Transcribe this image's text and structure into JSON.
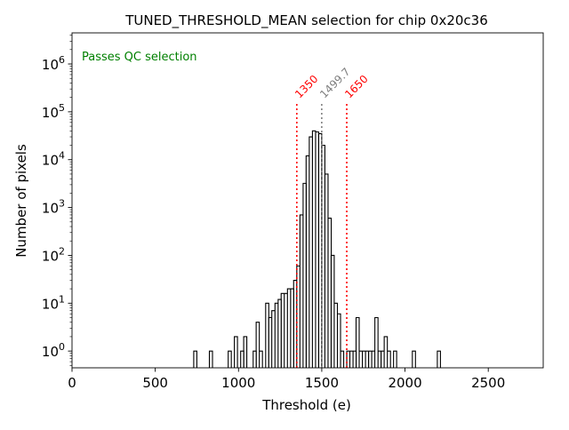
{
  "chart_data": {
    "type": "histogram",
    "title": "TUNED_THRESHOLD_MEAN selection for chip 0x20c36",
    "xlabel": "Threshold (e)",
    "ylabel": "Number of pixels",
    "xlim": [
      0,
      2830
    ],
    "ylim_log10": [
      -0.35,
      6.65
    ],
    "yscale": "log",
    "bin_width": 18.75,
    "x_ticks": [
      0,
      500,
      1000,
      1500,
      2000,
      2500
    ],
    "x_tick_labels": [
      "0",
      "500",
      "1000",
      "1500",
      "2000",
      "2500"
    ],
    "y_ticks_log10": [
      0,
      1,
      2,
      3,
      4,
      5,
      6
    ],
    "y_tick_labels": [
      {
        "base": "10",
        "exp": "0"
      },
      {
        "base": "10",
        "exp": "1"
      },
      {
        "base": "10",
        "exp": "2"
      },
      {
        "base": "10",
        "exp": "3"
      },
      {
        "base": "10",
        "exp": "4"
      },
      {
        "base": "10",
        "exp": "5"
      },
      {
        "base": "10",
        "exp": "6"
      }
    ],
    "bins": [
      {
        "x0": 731,
        "count": 1
      },
      {
        "x0": 825,
        "count": 1
      },
      {
        "x0": 938,
        "count": 1
      },
      {
        "x0": 975,
        "count": 2
      },
      {
        "x0": 1013,
        "count": 1
      },
      {
        "x0": 1031,
        "count": 2
      },
      {
        "x0": 1088,
        "count": 1
      },
      {
        "x0": 1106,
        "count": 4
      },
      {
        "x0": 1125,
        "count": 1
      },
      {
        "x0": 1163,
        "count": 10
      },
      {
        "x0": 1181,
        "count": 5
      },
      {
        "x0": 1200,
        "count": 7
      },
      {
        "x0": 1219,
        "count": 10
      },
      {
        "x0": 1238,
        "count": 12
      },
      {
        "x0": 1256,
        "count": 16
      },
      {
        "x0": 1275,
        "count": 16
      },
      {
        "x0": 1294,
        "count": 20
      },
      {
        "x0": 1313,
        "count": 20
      },
      {
        "x0": 1331,
        "count": 30
      },
      {
        "x0": 1350,
        "count": 60
      },
      {
        "x0": 1369,
        "count": 700
      },
      {
        "x0": 1388,
        "count": 3200
      },
      {
        "x0": 1406,
        "count": 12000
      },
      {
        "x0": 1425,
        "count": 30000
      },
      {
        "x0": 1444,
        "count": 40000
      },
      {
        "x0": 1463,
        "count": 38000
      },
      {
        "x0": 1481,
        "count": 35000
      },
      {
        "x0": 1500,
        "count": 20000
      },
      {
        "x0": 1519,
        "count": 5000
      },
      {
        "x0": 1538,
        "count": 600
      },
      {
        "x0": 1556,
        "count": 100
      },
      {
        "x0": 1575,
        "count": 10
      },
      {
        "x0": 1594,
        "count": 6
      },
      {
        "x0": 1613,
        "count": 1
      },
      {
        "x0": 1650,
        "count": 1
      },
      {
        "x0": 1669,
        "count": 1
      },
      {
        "x0": 1688,
        "count": 1
      },
      {
        "x0": 1706,
        "count": 5
      },
      {
        "x0": 1725,
        "count": 1
      },
      {
        "x0": 1744,
        "count": 1
      },
      {
        "x0": 1763,
        "count": 1
      },
      {
        "x0": 1781,
        "count": 1
      },
      {
        "x0": 1800,
        "count": 1
      },
      {
        "x0": 1819,
        "count": 5
      },
      {
        "x0": 1838,
        "count": 1
      },
      {
        "x0": 1856,
        "count": 1
      },
      {
        "x0": 1875,
        "count": 2
      },
      {
        "x0": 1894,
        "count": 1
      },
      {
        "x0": 1931,
        "count": 1
      },
      {
        "x0": 2044,
        "count": 1
      },
      {
        "x0": 2194,
        "count": 1
      }
    ],
    "vlines": [
      {
        "x": 1350,
        "label": "1350",
        "color": "#ff0000"
      },
      {
        "x": 1499.7,
        "label": "1499.7",
        "color": "#808080"
      },
      {
        "x": 1650,
        "label": "1650",
        "color": "#ff0000"
      }
    ],
    "annotation": {
      "text": "Passes QC selection",
      "color": "#008000"
    },
    "colors": {
      "histogram": "#000000",
      "axis": "#000000",
      "background": "#ffffff"
    }
  }
}
